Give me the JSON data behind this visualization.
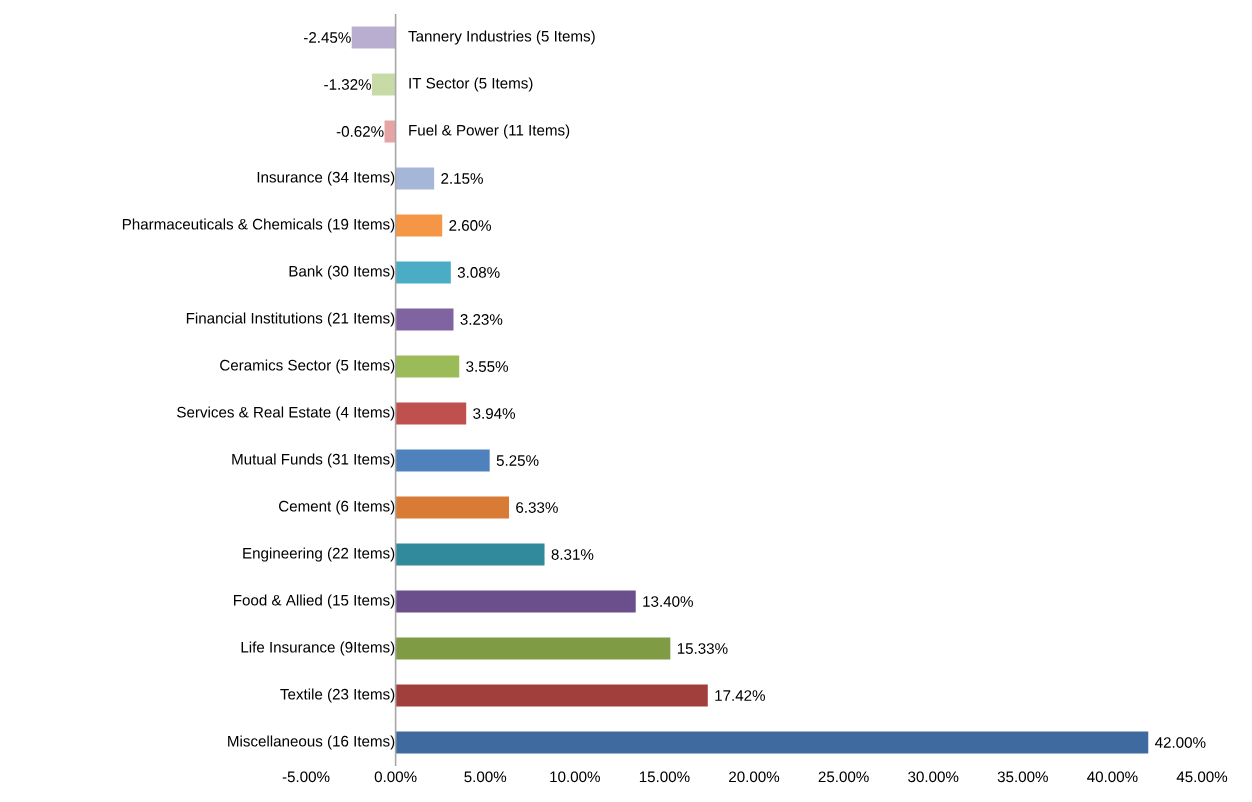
{
  "chart_data": {
    "type": "bar",
    "orientation": "horizontal",
    "categories": [
      "Tannery Industries (5 Items)",
      "IT Sector (5 Items)",
      "Fuel & Power (11 Items)",
      "Insurance (34 Items)",
      "Pharmaceuticals & Chemicals (19 Items)",
      "Bank (30 Items)",
      "Financial Institutions (21 Items)",
      "Ceramics Sector (5 Items)",
      "Services & Real Estate (4 Items)",
      "Mutual Funds (31 Items)",
      "Cement (6 Items)",
      "Engineering (22 Items)",
      "Food & Allied (15 Items)",
      "Life Insurance (9Items)",
      "Textile (23 Items)",
      "Miscellaneous (16 Items)"
    ],
    "values": [
      -2.45,
      -1.32,
      -0.62,
      2.15,
      2.6,
      3.08,
      3.23,
      3.55,
      3.94,
      5.25,
      6.33,
      8.31,
      13.4,
      15.33,
      17.42,
      42.0
    ],
    "value_labels": [
      "-2.45%",
      "-1.32%",
      "-0.62%",
      "2.15%",
      "2.60%",
      "3.08%",
      "3.23%",
      "3.55%",
      "3.94%",
      "5.25%",
      "6.33%",
      "8.31%",
      "13.40%",
      "15.33%",
      "17.42%",
      "42.00%"
    ],
    "colors": [
      "#b9aed0",
      "#c8dba6",
      "#e6a5a4",
      "#a5b6d9",
      "#f59646",
      "#4bacc6",
      "#8064a2",
      "#9bbb59",
      "#c0504d",
      "#4f81bd",
      "#d87b34",
      "#31899c",
      "#6a4f8c",
      "#7f9b43",
      "#a13f3c",
      "#3f6aa0"
    ],
    "xlim": [
      -5,
      45
    ],
    "xticks": [
      {
        "value": -5,
        "label": "-5.00%"
      },
      {
        "value": 0,
        "label": "0.00%"
      },
      {
        "value": 5,
        "label": "5.00%"
      },
      {
        "value": 10,
        "label": "10.00%"
      },
      {
        "value": 15,
        "label": "15.00%"
      },
      {
        "value": 20,
        "label": "20.00%"
      },
      {
        "value": 25,
        "label": "25.00%"
      },
      {
        "value": 30,
        "label": "30.00%"
      },
      {
        "value": 35,
        "label": "35.00%"
      },
      {
        "value": 40,
        "label": "40.00%"
      },
      {
        "value": 45,
        "label": "45.00%"
      }
    ],
    "grid": false
  }
}
